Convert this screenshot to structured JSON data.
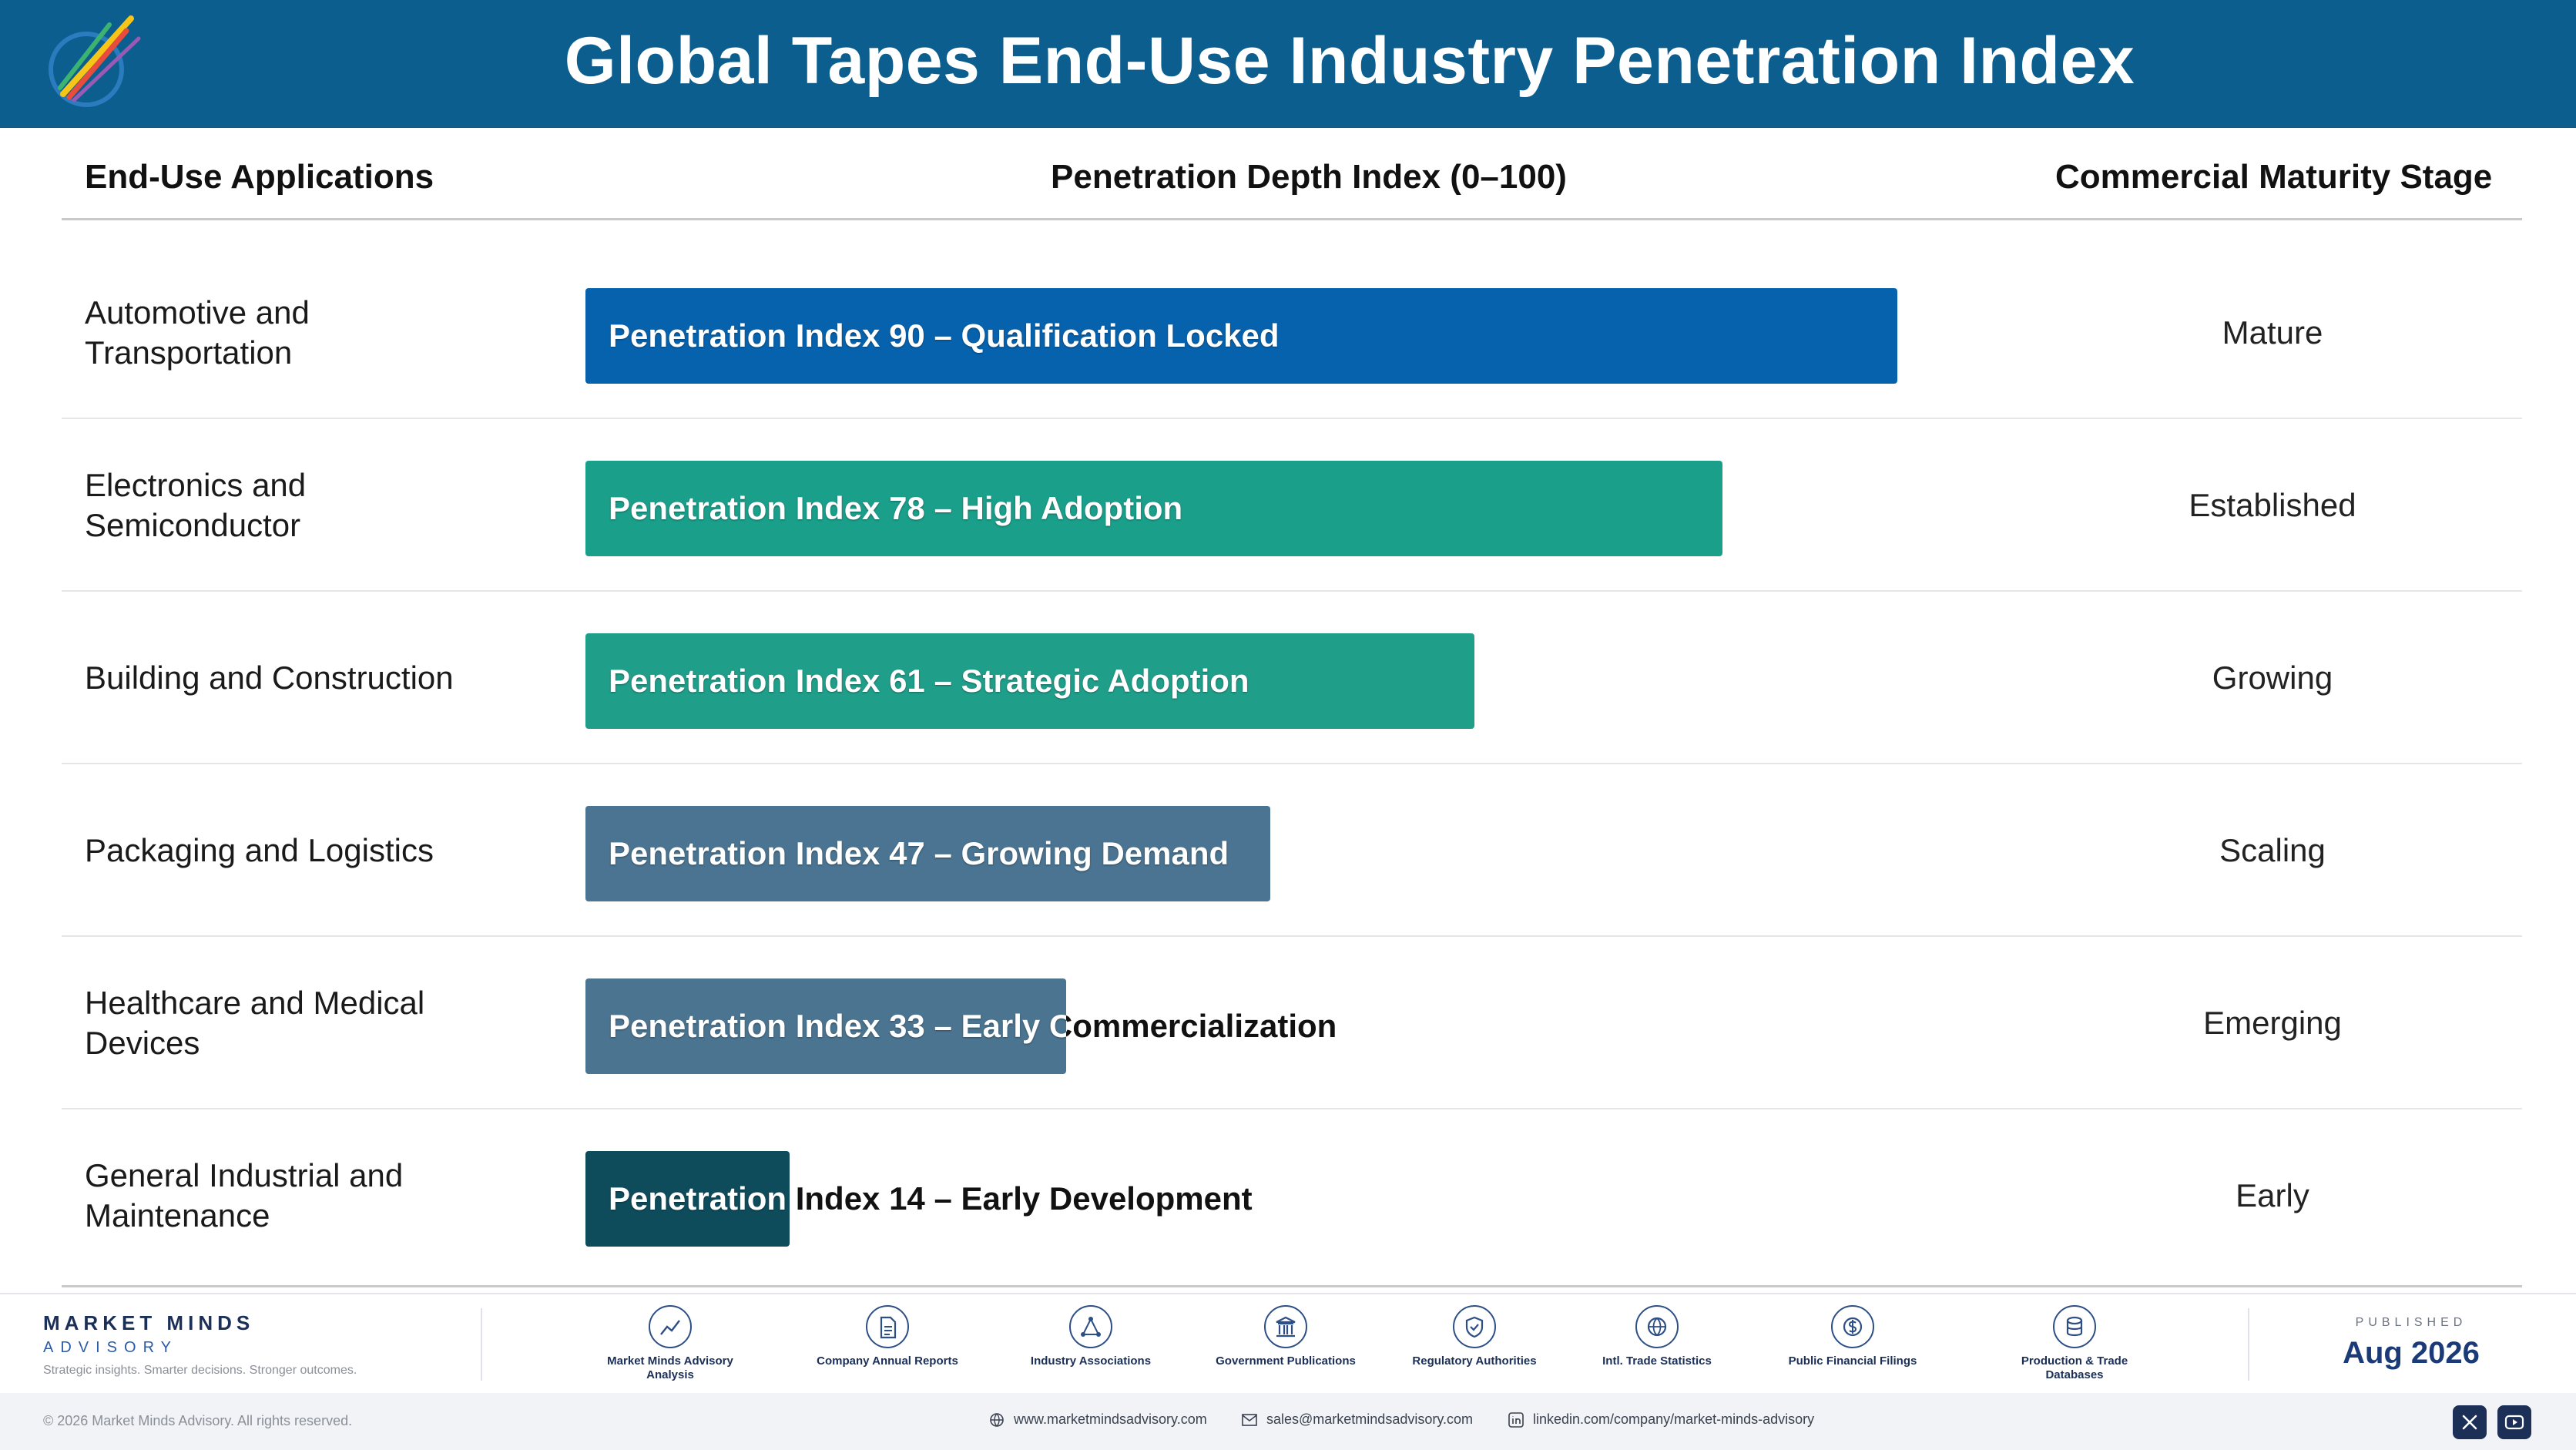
{
  "header": {
    "title": "Global Tapes End-Use Industry Penetration Index",
    "logo_caption": "Market Minds Advisory"
  },
  "columns": {
    "apps": "End-Use Applications",
    "depth": "Penetration Depth Index (0–100)",
    "stage": "Commercial Maturity Stage"
  },
  "chart_data": {
    "type": "bar",
    "orientation": "horizontal",
    "title": "Global Tapes End-Use Industry Penetration Index",
    "xlabel": "Penetration Depth Index (0–100)",
    "xlim": [
      0,
      100
    ],
    "grid": false,
    "categories": [
      "Automotive and Transportation",
      "Electronics and Semiconductor",
      "Building and Construction",
      "Packaging and Logistics",
      "Healthcare and Medical Devices",
      "General Industrial and Maintenance"
    ],
    "values": [
      90,
      78,
      61,
      47,
      33,
      14
    ],
    "labels": [
      "Penetration Index 90 – Qualification Locked",
      "Penetration Index 78 – High Adoption",
      "Penetration Index 61 – Strategic Adoption",
      "Penetration Index 47 – Growing Demand",
      "Penetration Index 33 – Early Commercialization",
      "Penetration Index 14 – Early Development"
    ],
    "stages": [
      "Mature",
      "Established",
      "Growing",
      "Scaling",
      "Emerging",
      "Early"
    ],
    "colors": [
      "#0762ad",
      "#1a9f8b",
      "#1f9f8a",
      "#4a7491",
      "#4b7490",
      "#0e4c5c"
    ]
  },
  "footer": {
    "brand_name": "MARKET MINDS",
    "brand_sub": "ADVISORY",
    "tagline": "Strategic insights. Smarter decisions. Stronger outcomes.",
    "sources": [
      {
        "label": "Market Minds Advisory Analysis",
        "icon": "chart-icon"
      },
      {
        "label": "Company Annual Reports",
        "icon": "document-icon"
      },
      {
        "label": "Industry Associations",
        "icon": "network-icon"
      },
      {
        "label": "Government Publications",
        "icon": "building-icon"
      },
      {
        "label": "Regulatory Authorities",
        "icon": "shield-icon"
      },
      {
        "label": "Intl. Trade Statistics",
        "icon": "globe-icon"
      },
      {
        "label": "Public Financial Filings",
        "icon": "dollar-icon"
      },
      {
        "label": "Production & Trade Databases",
        "icon": "database-icon"
      }
    ],
    "published_label": "PUBLISHED",
    "published_date": "Aug 2026",
    "copyright": "© 2026 Market Minds Advisory. All rights reserved.",
    "website": "www.marketmindsadvisory.com",
    "email": "sales@marketmindsadvisory.com",
    "linkedin": "linkedin.com/company/market-minds-advisory"
  }
}
